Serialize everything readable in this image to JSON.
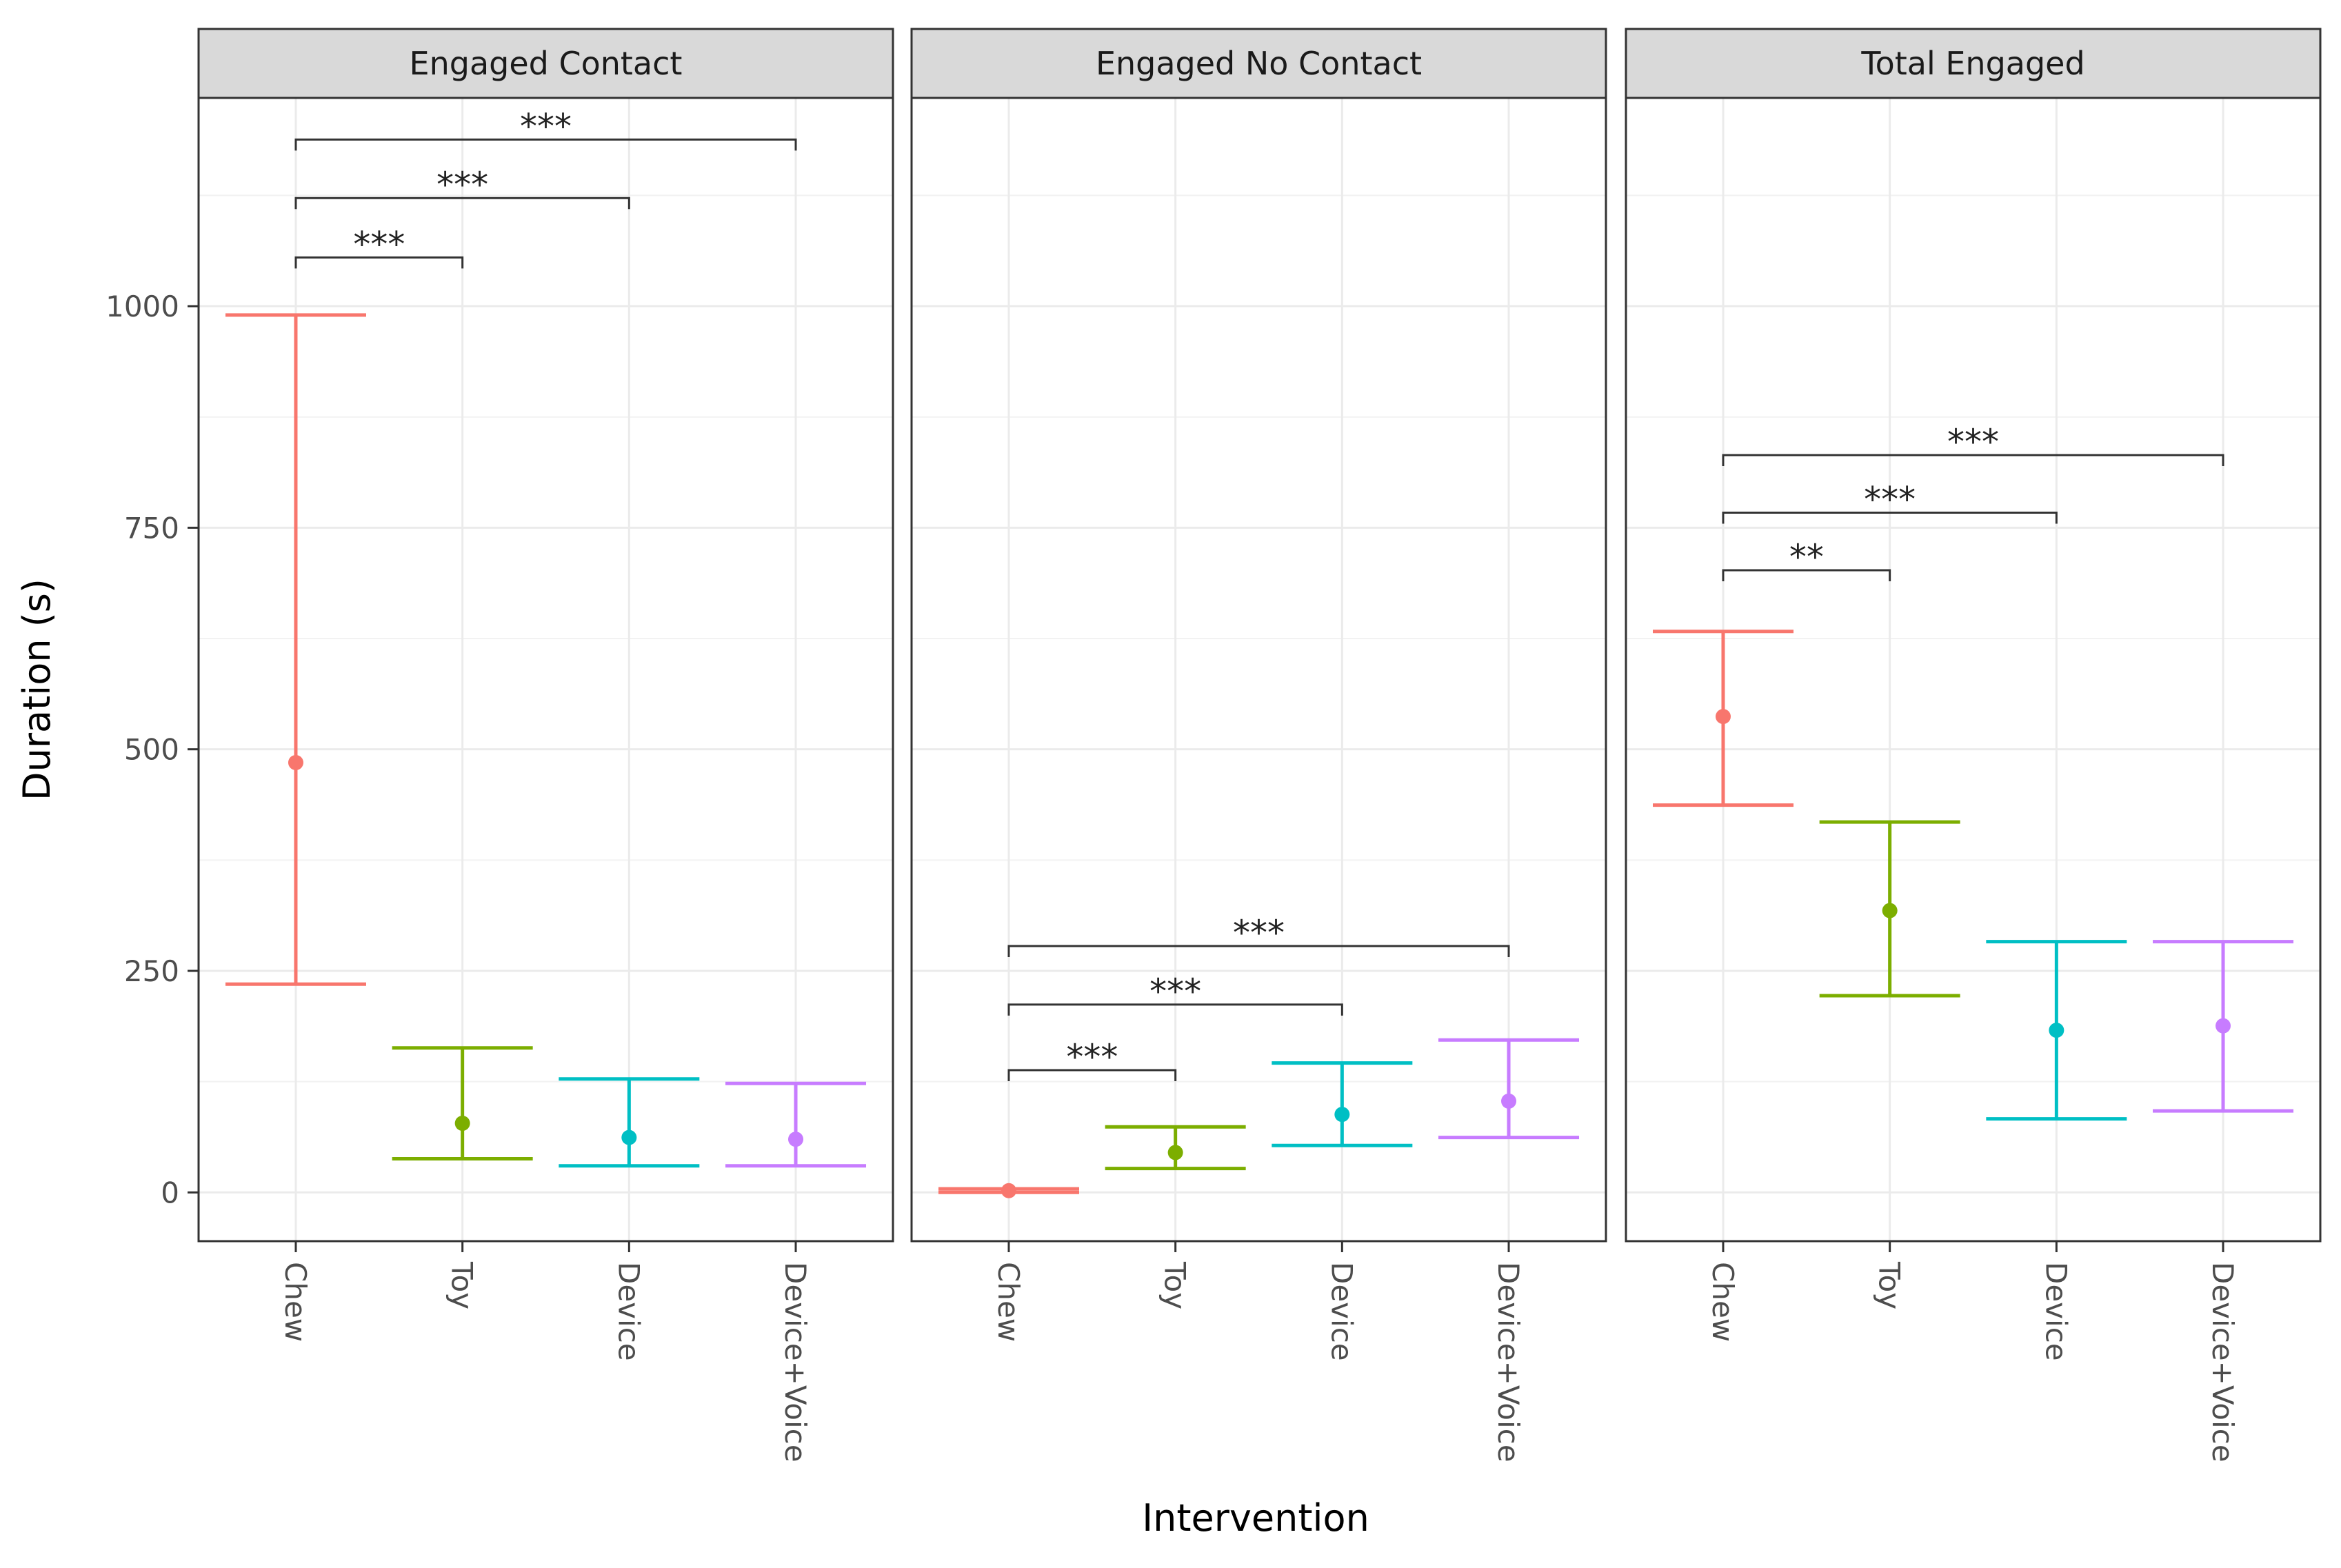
{
  "chart_data": {
    "type": "errorbar",
    "xlabel": "Intervention",
    "ylabel": "Duration (s)",
    "ylim": [
      -55,
      1235
    ],
    "yticks": [
      0,
      250,
      500,
      750,
      1000
    ],
    "categories": [
      "Chew",
      "Toy",
      "Device",
      "Device+Voice"
    ],
    "colors": {
      "Chew": "#F8766D",
      "Toy": "#7CAE00",
      "Device": "#00BFC4",
      "Device+Voice": "#C77CFF"
    },
    "panels": [
      {
        "title": "Engaged Contact",
        "points": [
          {
            "category": "Chew",
            "mean": 485,
            "lower": 235,
            "upper": 990
          },
          {
            "category": "Toy",
            "mean": 78,
            "lower": 38,
            "upper": 163
          },
          {
            "category": "Device",
            "mean": 62,
            "lower": 30,
            "upper": 128
          },
          {
            "category": "Device+Voice",
            "mean": 60,
            "lower": 30,
            "upper": 123
          }
        ],
        "brackets": [
          {
            "from": "Chew",
            "to": "Toy",
            "y": 1055,
            "label": "***"
          },
          {
            "from": "Chew",
            "to": "Device",
            "y": 1122,
            "label": "***"
          },
          {
            "from": "Chew",
            "to": "Device+Voice",
            "y": 1188,
            "label": "***"
          }
        ]
      },
      {
        "title": "Engaged No Contact",
        "points": [
          {
            "category": "Chew",
            "mean": 2,
            "lower": 0,
            "upper": 4
          },
          {
            "category": "Toy",
            "mean": 45,
            "lower": 27,
            "upper": 74
          },
          {
            "category": "Device",
            "mean": 88,
            "lower": 53,
            "upper": 146
          },
          {
            "category": "Device+Voice",
            "mean": 103,
            "lower": 62,
            "upper": 172
          }
        ],
        "brackets": [
          {
            "from": "Chew",
            "to": "Toy",
            "y": 138,
            "label": "***"
          },
          {
            "from": "Chew",
            "to": "Device",
            "y": 212,
            "label": "***"
          },
          {
            "from": "Chew",
            "to": "Device+Voice",
            "y": 278,
            "label": "***"
          }
        ]
      },
      {
        "title": "Total Engaged",
        "points": [
          {
            "category": "Chew",
            "mean": 537,
            "lower": 437,
            "upper": 633
          },
          {
            "category": "Toy",
            "mean": 318,
            "lower": 222,
            "upper": 418
          },
          {
            "category": "Device",
            "mean": 183,
            "lower": 83,
            "upper": 283
          },
          {
            "category": "Device+Voice",
            "mean": 188,
            "lower": 92,
            "upper": 283
          }
        ],
        "brackets": [
          {
            "from": "Chew",
            "to": "Toy",
            "y": 702,
            "label": "**"
          },
          {
            "from": "Chew",
            "to": "Device",
            "y": 767,
            "label": "***"
          },
          {
            "from": "Chew",
            "to": "Device+Voice",
            "y": 832,
            "label": "***"
          }
        ]
      }
    ]
  }
}
